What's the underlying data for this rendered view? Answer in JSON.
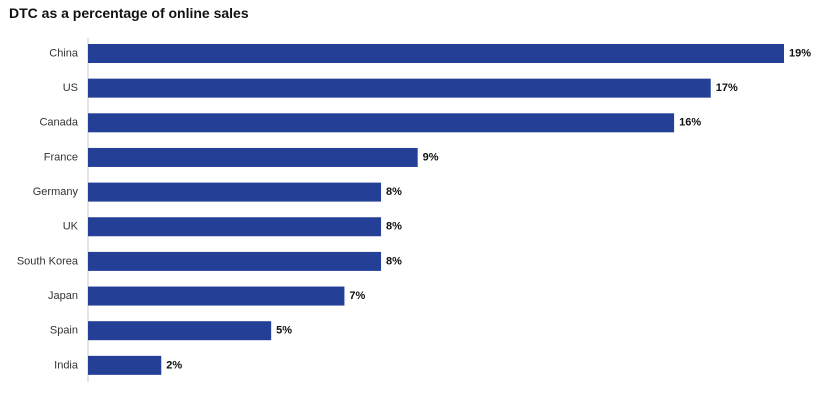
{
  "chart_data": {
    "type": "bar",
    "orientation": "horizontal",
    "title": "DTC as a percentage of online sales",
    "categories": [
      "China",
      "US",
      "Canada",
      "France",
      "Germany",
      "UK",
      "South Korea",
      "Japan",
      "Spain",
      "India"
    ],
    "values": [
      19,
      17,
      16,
      9,
      8,
      8,
      8,
      7,
      5,
      2
    ],
    "value_labels": [
      "19%",
      "17%",
      "16%",
      "9%",
      "8%",
      "8%",
      "8%",
      "7%",
      "5%",
      "2%"
    ],
    "xlabel": "",
    "ylabel": "",
    "xlim": [
      0,
      19
    ],
    "grid": false,
    "legend": "none",
    "bar_color": "#233f96"
  }
}
